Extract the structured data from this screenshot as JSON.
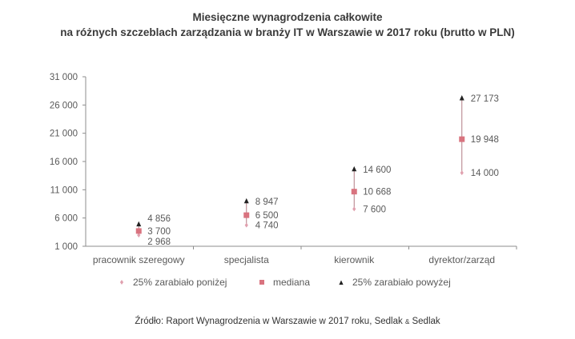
{
  "title": {
    "line1": "Miesięczne wynagrodzenia całkowite",
    "line2": "na różnych szczeblach zarządzania w branży IT w Warszawie w 2017 roku (brutto w PLN)"
  },
  "source": {
    "prefix": "Źródło: Raport Wynagrodzenia w Warszawie w 2017 roku, Sedlak ",
    "amp": "&",
    "suffix": " Sedlak"
  },
  "colors": {
    "low": "#e0a0ae",
    "median": "#d9737f",
    "high": "#222222",
    "range_line": "#b07a82",
    "axis": "#8c8c8c",
    "text": "#595959"
  },
  "chart_data": {
    "type": "scatter",
    "title": "Miesięczne wynagrodzenia całkowite na różnych szczeblach zarządzania w branży IT w Warszawie w 2017 roku (brutto w PLN)",
    "xlabel": "",
    "ylabel": "",
    "ylim": [
      1000,
      31000
    ],
    "yticks": [
      1000,
      6000,
      11000,
      16000,
      21000,
      26000,
      31000
    ],
    "ytick_labels": [
      "1 000",
      "6 000",
      "11 000",
      "16 000",
      "21 000",
      "26 000",
      "31 000"
    ],
    "grid": false,
    "legend_position": "bottom",
    "categories": [
      "pracownik szeregowy",
      "specjalista",
      "kierownik",
      "dyrektor/zarząd"
    ],
    "series": [
      {
        "name": "25% zarabiało poniżej",
        "marker": "diamond",
        "values": [
          2968,
          4740,
          7600,
          14000
        ],
        "labels": [
          "2 968",
          "4 740",
          "7 600",
          "14 000"
        ]
      },
      {
        "name": "mediana",
        "marker": "square",
        "values": [
          3700,
          6500,
          10668,
          19948
        ],
        "labels": [
          "3 700",
          "6 500",
          "10 668",
          "19 948"
        ]
      },
      {
        "name": "25% zarabiało powyżej",
        "marker": "triangle",
        "values": [
          4856,
          8947,
          14600,
          27173
        ],
        "labels": [
          "4 856",
          "8 947",
          "14 600",
          "27 173"
        ]
      }
    ]
  }
}
